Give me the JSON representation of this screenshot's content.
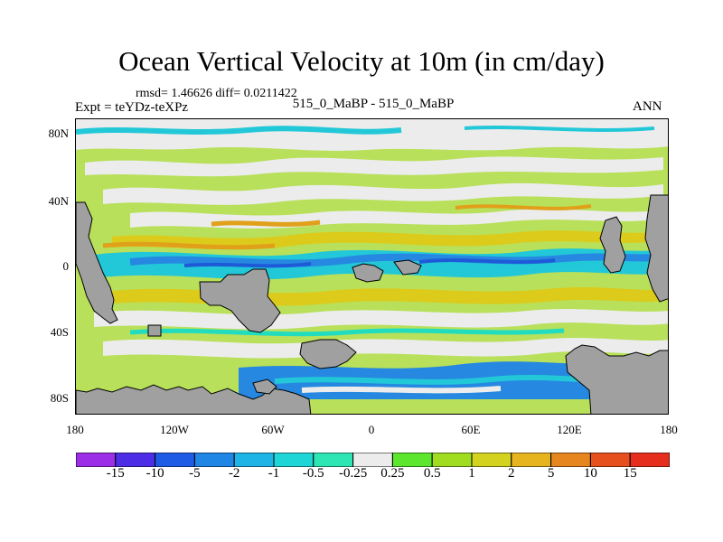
{
  "title": "Ocean Vertical Velocity at 10m (in cm/day)",
  "stats": "rmsd= 1.46626 diff= 0.0211422",
  "expt": "Expt = teYDz-teXPz",
  "comparison": "515_0_MaBP - 515_0_MaBP",
  "season": "ANN",
  "lat_labels": [
    "80N",
    "40N",
    "0",
    "40S",
    "80S"
  ],
  "lon_labels": [
    "180",
    "120W",
    "60W",
    "0",
    "60E",
    "120E",
    "180"
  ],
  "colorbar": {
    "labels": [
      "-15",
      "-10",
      "-5",
      "-2",
      "-1",
      "-0.5",
      "-0.25",
      "0.25",
      "0.5",
      "1",
      "2",
      "5",
      "10",
      "15"
    ],
    "colors": [
      "#9b2ee6",
      "#4d2ee6",
      "#1f5ce6",
      "#1f86e6",
      "#1fb4e6",
      "#1fd6d6",
      "#2ee6b4",
      "#ececec",
      "#5ce62e",
      "#a0dc1f",
      "#d2d21f",
      "#e6b41f",
      "#e6861f",
      "#e6501f",
      "#e62e1f"
    ]
  },
  "colors": {
    "land": "#a0a0a0",
    "white": "#ececec",
    "lightgreen": "#b8e05a",
    "green": "#8fd63b",
    "yellowgreen": "#c8d22a",
    "yellow": "#dccb1a",
    "orange": "#e0a01a",
    "cyan": "#22c8d8",
    "teal": "#22dcc0",
    "blue": "#2688e0",
    "darkblue": "#1e5ad8"
  }
}
